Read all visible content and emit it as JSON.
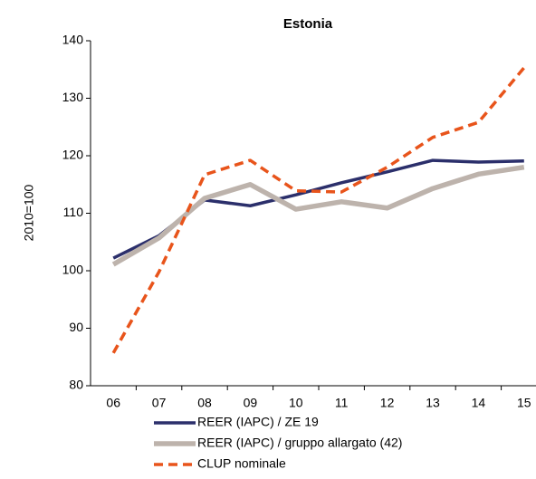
{
  "chart_data": {
    "type": "line",
    "title": "Estonia",
    "y_label": "2010=100",
    "categories": [
      "06",
      "07",
      "08",
      "09",
      "10",
      "11",
      "12",
      "13",
      "14",
      "15"
    ],
    "series": [
      {
        "name": "REER (IAPC) / ZE 19",
        "color": "#2b2f6b",
        "width": 3.5,
        "dashed": false,
        "values": [
          102.2,
          106.1,
          112.3,
          111.3,
          113.2,
          115.3,
          117.2,
          119.2,
          118.9,
          119.1
        ]
      },
      {
        "name": "REER (IAPC) / gruppo allargato (42)",
        "color": "#bdb3ac",
        "width": 5.5,
        "dashed": false,
        "values": [
          101.1,
          105.7,
          112.6,
          115.0,
          110.7,
          112.0,
          110.9,
          114.3,
          116.8,
          118.0
        ]
      },
      {
        "name": "CLUP nominale",
        "color": "#e8541b",
        "width": 3.5,
        "dashed": true,
        "values": [
          85.7,
          99.8,
          116.7,
          119.2,
          113.9,
          113.7,
          118.0,
          123.2,
          125.8,
          135.3
        ]
      }
    ],
    "ylim": [
      80,
      140
    ],
    "yticks": [
      80,
      90,
      100,
      110,
      120,
      130,
      140
    ],
    "grid": false
  }
}
